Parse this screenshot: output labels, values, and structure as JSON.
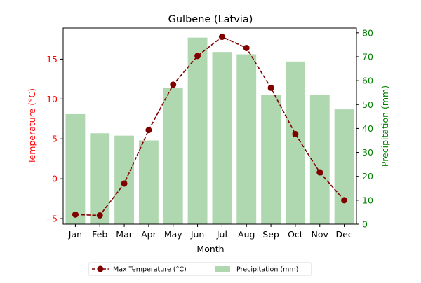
{
  "chart_data": {
    "type": "bar+line",
    "title": "Gulbene (Latvia)",
    "xlabel": "Month",
    "ylabel_left": "Temperature (°C)",
    "ylabel_right": "Precipitation (mm)",
    "categories": [
      "Jan",
      "Feb",
      "Mar",
      "Apr",
      "May",
      "Jun",
      "Jul",
      "Aug",
      "Sep",
      "Oct",
      "Nov",
      "Dec"
    ],
    "y_left": {
      "lim": [
        -5.7,
        18.9
      ],
      "ticks": [
        -5,
        0,
        5,
        10,
        15
      ]
    },
    "y_right": {
      "lim": [
        0,
        82
      ],
      "ticks": [
        0,
        10,
        20,
        30,
        40,
        50,
        60,
        70,
        80
      ]
    },
    "series": [
      {
        "name": "Max Temperature (°C)",
        "kind": "line",
        "axis": "left",
        "style": "dashed",
        "marker": "circle",
        "color": "#800000",
        "values": [
          -4.5,
          -4.6,
          -0.6,
          6.1,
          11.8,
          15.4,
          17.8,
          16.4,
          11.4,
          5.6,
          0.8,
          -2.7
        ]
      },
      {
        "name": "Precipitation (mm)",
        "kind": "bar",
        "axis": "right",
        "color": "#b0d8b0",
        "values": [
          46,
          38,
          37,
          35,
          57,
          78,
          72,
          71,
          54,
          68,
          54,
          48
        ]
      }
    ],
    "legend": {
      "position": "bottom-center",
      "ncol": 2
    },
    "colors": {
      "left_axis": "#ff0000",
      "right_axis": "#008000",
      "axes": "#000000"
    },
    "grid": false
  }
}
